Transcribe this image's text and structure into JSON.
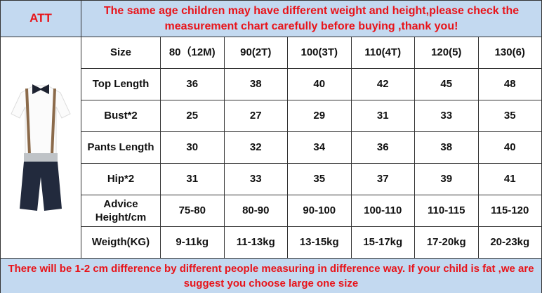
{
  "header": {
    "tag": "ATT",
    "notice": "The same age children may have different weight and height,please check the measurement chart carefully before buying ,thank you!"
  },
  "table": {
    "columns": [
      "Size",
      "80（12M)",
      "90(2T)",
      "100(3T)",
      "110(4T)",
      "120(5)",
      "130(6)"
    ],
    "rows": [
      [
        "Top Length",
        36,
        38,
        40,
        42,
        45,
        48
      ],
      [
        "Bust*2",
        25,
        27,
        29,
        31,
        33,
        35
      ],
      [
        "Pants Length",
        30,
        32,
        34,
        36,
        38,
        40
      ],
      [
        "Hip*2",
        31,
        33,
        35,
        37,
        39,
        41
      ],
      [
        "Advice Height/cm",
        "75-80",
        "80-90",
        "90-100",
        "100-110",
        "110-115",
        "115-120"
      ],
      [
        "Weigth(KG)",
        "9-11kg",
        "11-13kg",
        "13-15kg",
        "15-17kg",
        "17-20kg",
        "20-23kg"
      ]
    ]
  },
  "footer": {
    "notice": "There will be 1-2 cm difference by different people measuring in difference way. If your child is fat ,we are suggest you choose large one size"
  }
}
